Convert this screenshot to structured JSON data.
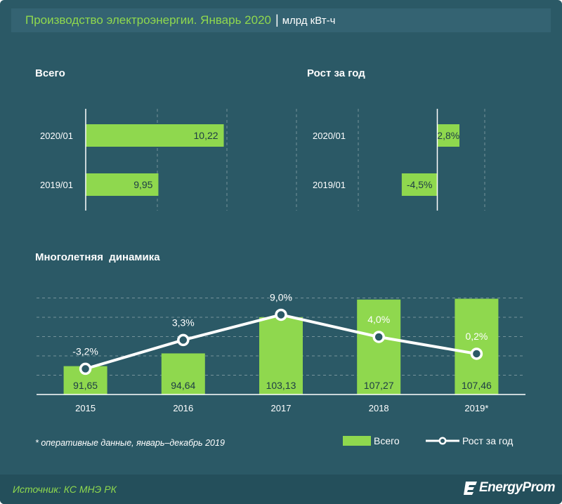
{
  "header": {
    "title": "Производство электроэнергии. Январь 2020",
    "separator": "|",
    "unit": "млрд кВт-ч"
  },
  "sections": {
    "total": "Всего",
    "growth": "Рост за год",
    "dynamics": "Многолетняя  динамика"
  },
  "colors": {
    "background": "#2b5966",
    "green": "#8fd84e",
    "line": "#ffffff"
  },
  "chart_data": [
    {
      "type": "bar",
      "orientation": "horizontal",
      "title": "Всего",
      "categories": [
        "2020/01",
        "2019/01"
      ],
      "values": [
        10.22,
        9.95
      ],
      "labels": [
        "10,22",
        "9,95"
      ],
      "xlim": [
        9.65,
        10.52
      ]
    },
    {
      "type": "bar",
      "orientation": "horizontal",
      "title": "Рост за год",
      "categories": [
        "2020/01",
        "2019/01"
      ],
      "values": [
        2.8,
        -4.5
      ],
      "labels": [
        "2,8%",
        "-4,5%"
      ],
      "xlim": [
        -10,
        6
      ]
    },
    {
      "type": "bar+line",
      "title": "Многолетняя  динамика",
      "categories": [
        "2015",
        "2016",
        "2017",
        "2018",
        "2019*"
      ],
      "series": [
        {
          "name": "Всего",
          "type": "bar",
          "values": [
            91.65,
            94.64,
            103.13,
            107.27,
            107.46
          ],
          "labels": [
            "91,65",
            "94,64",
            "103,13",
            "107,27",
            "107,46"
          ],
          "ylim": [
            85,
            112
          ]
        },
        {
          "name": "Рост за год",
          "type": "line",
          "values": [
            -3.2,
            3.3,
            9.0,
            4.0,
            0.2
          ],
          "labels": [
            "-3,2%",
            "3,3%",
            "9,0%",
            "4,0%",
            "0,2%"
          ],
          "ylim": [
            -9,
            17
          ]
        }
      ],
      "legend": "bottom-right"
    }
  ],
  "legend": {
    "bars": "Всего",
    "line": "Рост за год"
  },
  "footnote": "* оперативные данные, январь–декабрь 2019",
  "source": "Источник: КС МНЭ РК",
  "logo": "EnergyProm"
}
